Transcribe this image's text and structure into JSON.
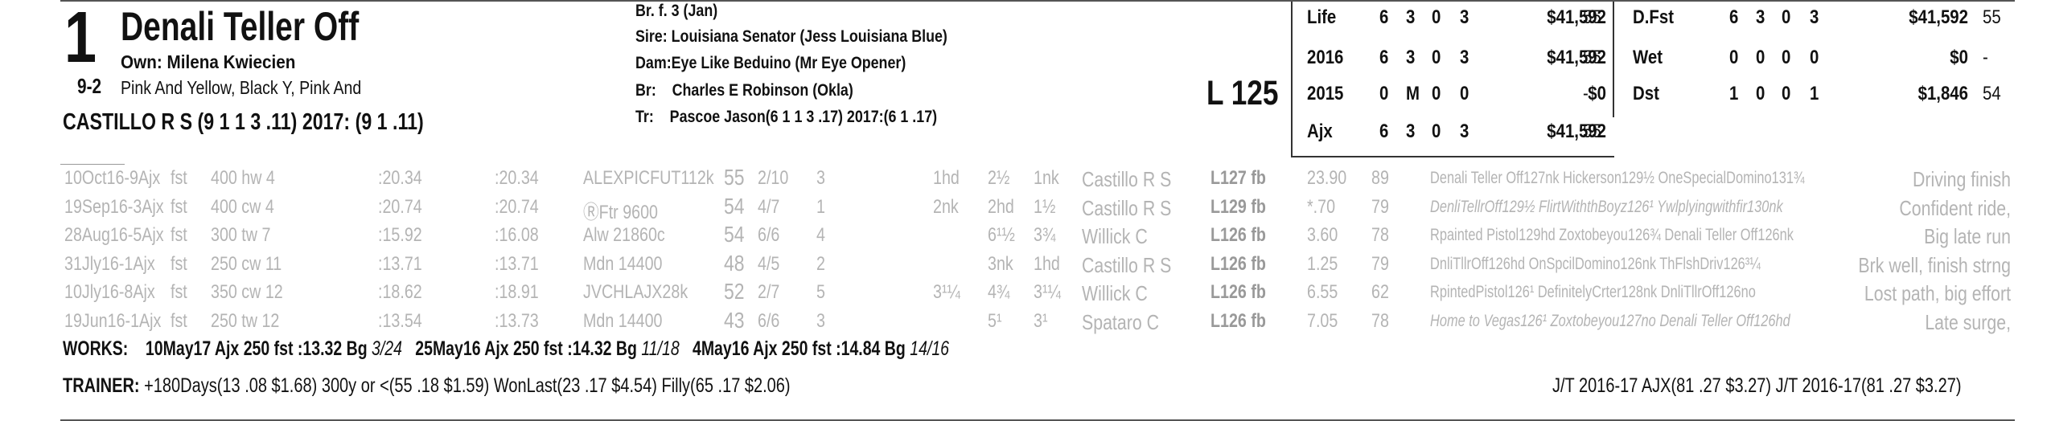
{
  "header": {
    "program_number": "1",
    "morning_line": "9-2",
    "horse_name": "Denali Teller Off",
    "owner": "Own: Milena Kwiecien",
    "silks": "Pink And Yellow, Black Y, Pink And",
    "jockey": "CASTILLO R S (9 1 1 3 .11) 2017: (9 1 .11)"
  },
  "breeding": {
    "sex_age": "Br. f. 3 (Jan)",
    "sire_label": "Sire:",
    "sire": "Louisiana Senator (Jess Louisiana Blue)",
    "dam_label": "Dam:",
    "dam": "Eye Like Beduino (Mr Eye Opener)",
    "breeder_label": "Br:",
    "breeder": "Charles E Robinson (Okla)",
    "trainer_label": "Tr:",
    "trainer": "Pascoe Jason(6 1 1 3 .17)  2017:(6 1 .17)"
  },
  "weight": "L 125",
  "stats_left": [
    {
      "label": "Life",
      "starts": "6",
      "w": "3",
      "p": "0",
      "s": "3",
      "earnings": "$41,592",
      "speed": "55"
    },
    {
      "label": "2016",
      "starts": "6",
      "w": "3",
      "p": "0",
      "s": "3",
      "earnings": "$41,592",
      "speed": "55"
    },
    {
      "label": "2015",
      "starts": "0",
      "w": "M",
      "p": "0",
      "s": "0",
      "earnings": "$0",
      "speed": "-"
    },
    {
      "label": "Ajx",
      "starts": "6",
      "w": "3",
      "p": "0",
      "s": "3",
      "earnings": "$41,592",
      "speed": "55"
    }
  ],
  "stats_right": [
    {
      "label": "D.Fst",
      "starts": "6",
      "w": "3",
      "p": "0",
      "s": "3",
      "earnings": "$41,592",
      "speed": "55"
    },
    {
      "label": "Wet",
      "starts": "0",
      "w": "0",
      "p": "0",
      "s": "0",
      "earnings": "$0",
      "speed": "-"
    },
    {
      "label": "Dst",
      "starts": "1",
      "w": "0",
      "p": "0",
      "s": "1",
      "earnings": "$1,846",
      "speed": "54"
    }
  ],
  "past_performances": [
    {
      "date": "10Oct16-9Ajx",
      "surf": "fst",
      "dist": "400 hw 4",
      "t1": ":20.34",
      "t2": ":20.34",
      "race": "ALEXPICFUT112k",
      "spd": "55",
      "pp": "2/10",
      "st": "3",
      "c1": "1hd",
      "c2": "2½",
      "fin": "1nk",
      "jockey": "Castillo R S",
      "wt": "L127 fb",
      "odds": "23.90",
      "fig": "89",
      "comment": "Denali Teller Off127nk Hickerson129½ OneSpecialDomino131¾",
      "note": "Driving finish"
    },
    {
      "date": "19Sep16-3Ajx",
      "surf": "fst",
      "dist": "400 cw 4",
      "t1": ":20.74",
      "t2": ":20.74",
      "race": "ⓇFtr 9600",
      "spd": "54",
      "pp": "4/7",
      "st": "1",
      "c1": "2nk",
      "c2": "2hd",
      "fin": "1½",
      "jockey": "Castillo R S",
      "wt": "L129 fb",
      "odds": "*.70",
      "fig": "79",
      "comment": "DenliTellrOff129½ FlirtWiththBoyz126¹ Ywlplyingwithfir130nk",
      "note": "Confident ride,"
    },
    {
      "date": "28Aug16-5Ajx",
      "surf": "fst",
      "dist": "300 tw 7",
      "t1": ":15.92",
      "t2": ":16.08",
      "race": "Alw 21860c",
      "spd": "54",
      "pp": "6/6",
      "st": "4",
      "c1": "",
      "c2": "6¹½",
      "fin": "3¾",
      "jockey": "Willick C",
      "wt": "L126 fb",
      "odds": "3.60",
      "fig": "78",
      "comment": "Rpainted Pistol129hd Zoxtobeyou126¾ Denali Teller Off126nk",
      "note": "Big late run"
    },
    {
      "date": "31Jly16-1Ajx",
      "surf": "fst",
      "dist": "250 cw 11",
      "t1": ":13.71",
      "t2": ":13.71",
      "race": "Mdn 14400",
      "spd": "48",
      "pp": "4/5",
      "st": "2",
      "c1": "",
      "c2": "3nk",
      "fin": "1hd",
      "jockey": "Castillo R S",
      "wt": "L126 fb",
      "odds": "1.25",
      "fig": "79",
      "comment": "DnliTllrOff126hd OnSpcilDomino126nk ThFlshDriv126³¼",
      "note": "Brk well, finish strng"
    },
    {
      "date": "10Jly16-8Ajx",
      "surf": "fst",
      "dist": "350 cw 12",
      "t1": ":18.62",
      "t2": ":18.91",
      "race": "JVCHLAJX28k",
      "spd": "52",
      "pp": "2/7",
      "st": "5",
      "c1": "3¹¼",
      "c2": "4¾",
      "fin": "3¹¼",
      "jockey": "Willick C",
      "wt": "L126 fb",
      "odds": "6.55",
      "fig": "62",
      "comment": "RpintedPistol126¹ DefinitelyCrter128nk DnliTllrOff126no",
      "note": "Lost path, big effort"
    },
    {
      "date": "19Jun16-1Ajx",
      "surf": "fst",
      "dist": "250 tw 12",
      "t1": ":13.54",
      "t2": ":13.73",
      "race": "Mdn 14400",
      "spd": "43",
      "pp": "6/6",
      "st": "3",
      "c1": "",
      "c2": "5¹",
      "fin": "3¹",
      "jockey": "Spataro C",
      "wt": "L126 fb",
      "odds": "7.05",
      "fig": "78",
      "comment": "Home to Vegas126¹ Zoxtobeyou127no Denali Teller Off126hd",
      "note": "Late surge,"
    }
  ],
  "works": {
    "label": "WORKS:",
    "items": [
      {
        "date": "10May17",
        "track": "Ajx",
        "dist": "250",
        "surf": "fst",
        "time": ":13.32",
        "grade": "Bg",
        "rank": "3/24"
      },
      {
        "date": "25May16",
        "track": "Ajx",
        "dist": "250",
        "surf": "fst",
        "time": ":14.32",
        "grade": "Bg",
        "rank": "11/18"
      },
      {
        "date": "4May16",
        "track": "Ajx",
        "dist": "250",
        "surf": "fst",
        "time": ":14.84",
        "grade": "Bg",
        "rank": "14/16"
      }
    ]
  },
  "trainer_stats": {
    "label": "TRAINER:",
    "text": "+180Days(13 .08 $1.68) 300y or <(55 .18 $1.59) WonLast(23 .17 $4.54) Filly(65 .17 $2.06)",
    "jt": "J/T 2016-17 AJX(81 .27 $3.27)  J/T 2016-17(81 .27 $3.27)"
  }
}
